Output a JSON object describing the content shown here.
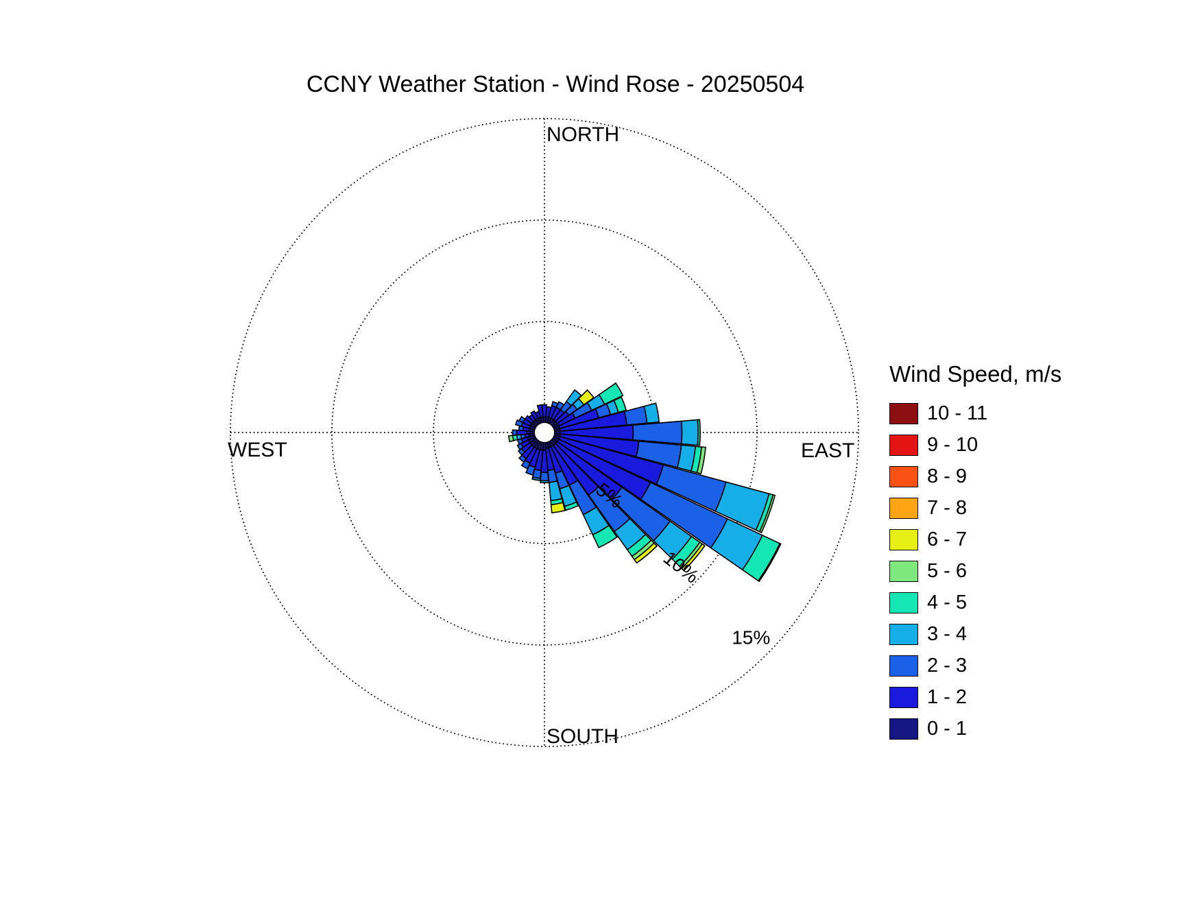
{
  "title": "CCNY Weather Station - Wind Rose - 20250504",
  "compass": {
    "north": "NORTH",
    "east": "EAST",
    "south": "SOUTH",
    "west": "WEST"
  },
  "legend": {
    "title": "Wind Speed, m/s",
    "bins": [
      {
        "label": "10 - 11",
        "color": "#8E0F12"
      },
      {
        "label": "9 - 10",
        "color": "#E51414"
      },
      {
        "label": "8 - 9",
        "color": "#FA5214"
      },
      {
        "label": "7 - 8",
        "color": "#FFA414"
      },
      {
        "label": "6 - 7",
        "color": "#E6F014"
      },
      {
        "label": "5 - 6",
        "color": "#7EE87E"
      },
      {
        "label": "4 - 5",
        "color": "#14E6B4"
      },
      {
        "label": "3 - 4",
        "color": "#16AEE8"
      },
      {
        "label": "2 - 3",
        "color": "#1B61E8"
      },
      {
        "label": "1 - 2",
        "color": "#1A1ADE"
      },
      {
        "label": "0 - 1",
        "color": "#161685"
      }
    ]
  },
  "chart_data": {
    "type": "wind_rose_polar_stacked_bar",
    "units": "percent of time",
    "title": "CCNY Weather Station - Wind Rose - 20250504",
    "radial_ticks": [
      {
        "label": "5%",
        "value": 5
      },
      {
        "label": "10%",
        "value": 10
      },
      {
        "label": "15%",
        "value": 15
      }
    ],
    "radial_axis_max": 15,
    "grid": "dotted",
    "sector_width_deg": 10,
    "speed_bins_ascending": [
      "0 - 1",
      "1 - 2",
      "2 - 3",
      "3 - 4",
      "4 - 5",
      "5 - 6",
      "6 - 7",
      "7 - 8",
      "8 - 9",
      "9 - 10",
      "10 - 11"
    ],
    "speed_colors_ascending": [
      "#161685",
      "#1A1ADE",
      "#1B61E8",
      "#16AEE8",
      "#14E6B4",
      "#7EE87E",
      "#E6F014",
      "#FFA414",
      "#FA5214",
      "#E51414",
      "#8E0F12"
    ],
    "directions": [
      {
        "dir": 0,
        "values": [
          0.3,
          0.6
        ]
      },
      {
        "dir": 10,
        "values": [
          0.3,
          0.5
        ]
      },
      {
        "dir": 20,
        "values": [
          0.3,
          0.6,
          0.2
        ]
      },
      {
        "dir": 30,
        "values": [
          0.3,
          0.6,
          0.3
        ]
      },
      {
        "dir": 40,
        "values": [
          0.3,
          0.6,
          0.5,
          0.7
        ]
      },
      {
        "dir": 50,
        "values": [
          0.3,
          0.7,
          0.5,
          0.4,
          0,
          0,
          0.6
        ]
      },
      {
        "dir": 60,
        "values": [
          0.3,
          0.9,
          0.9,
          0.7,
          1.0
        ]
      },
      {
        "dir": 70,
        "values": [
          0.3,
          2.0,
          0.6,
          0.4,
          0.4
        ]
      },
      {
        "dir": 80,
        "values": [
          0.3,
          3.3,
          1.0,
          0.6
        ]
      },
      {
        "dir": 90,
        "values": [
          0.3,
          3.6,
          2.4,
          0.8,
          0.1
        ]
      },
      {
        "dir": 100,
        "values": [
          0.3,
          3.9,
          2.1,
          0.7,
          0.3,
          0.2
        ]
      },
      {
        "dir": 110,
        "values": [
          0.3,
          5.3,
          3.2,
          2.2,
          0.2,
          0.1
        ]
      },
      {
        "dir": 120,
        "values": [
          0.3,
          5.0,
          4.2,
          1.9,
          0.95,
          0.05
        ]
      },
      {
        "dir": 130,
        "values": [
          0.3,
          3.9,
          2.9,
          1.3,
          0.5,
          0.15,
          0.15
        ]
      },
      {
        "dir": 140,
        "values": [
          0.3,
          3.0,
          2.2,
          1.1,
          0.4,
          0.2,
          0.2
        ]
      },
      {
        "dir": 150,
        "values": [
          0.3,
          2.1,
          1.6,
          1.1,
          0.7
        ]
      },
      {
        "dir": 160,
        "values": [
          0.3,
          1.3,
          0.8,
          0.9,
          0.2
        ]
      },
      {
        "dir": 170,
        "values": [
          0.3,
          1.1,
          0.6,
          0.9,
          0.2,
          0,
          0.4
        ]
      },
      {
        "dir": 180,
        "values": [
          0.4,
          1.1,
          0.4,
          0.1
        ]
      },
      {
        "dir": 190,
        "values": [
          0.4,
          1.0,
          0.4,
          0.1
        ]
      },
      {
        "dir": 200,
        "values": [
          0.4,
          0.9,
          0.4
        ]
      },
      {
        "dir": 210,
        "values": [
          0.4,
          0.8,
          0.3
        ]
      },
      {
        "dir": 220,
        "values": [
          0.4,
          0.7,
          0.2
        ]
      },
      {
        "dir": 230,
        "values": [
          0.4,
          0.5,
          0.2
        ]
      },
      {
        "dir": 240,
        "values": [
          0.4,
          0.4,
          0.2
        ]
      },
      {
        "dir": 250,
        "values": [
          0.4,
          0.3,
          0.2
        ]
      },
      {
        "dir": 260,
        "values": [
          0.3,
          0.2,
          0.2,
          0.2,
          0.2,
          0.2
        ]
      },
      {
        "dir": 270,
        "values": [
          0.4,
          0.5,
          0.2
        ]
      },
      {
        "dir": 280,
        "values": [
          0.3,
          0.3,
          0.2
        ]
      },
      {
        "dir": 290,
        "values": [
          0.3,
          0.4,
          0.3
        ]
      },
      {
        "dir": 300,
        "values": [
          0.3,
          0.4,
          0.2
        ]
      },
      {
        "dir": 310,
        "values": [
          0.3,
          0.4
        ]
      },
      {
        "dir": 320,
        "values": [
          0.3,
          0.3
        ]
      },
      {
        "dir": 330,
        "values": [
          0.3,
          0.4
        ]
      },
      {
        "dir": 340,
        "values": [
          0.3,
          0.3
        ]
      },
      {
        "dir": 350,
        "values": [
          0.3,
          0.6
        ]
      }
    ]
  }
}
